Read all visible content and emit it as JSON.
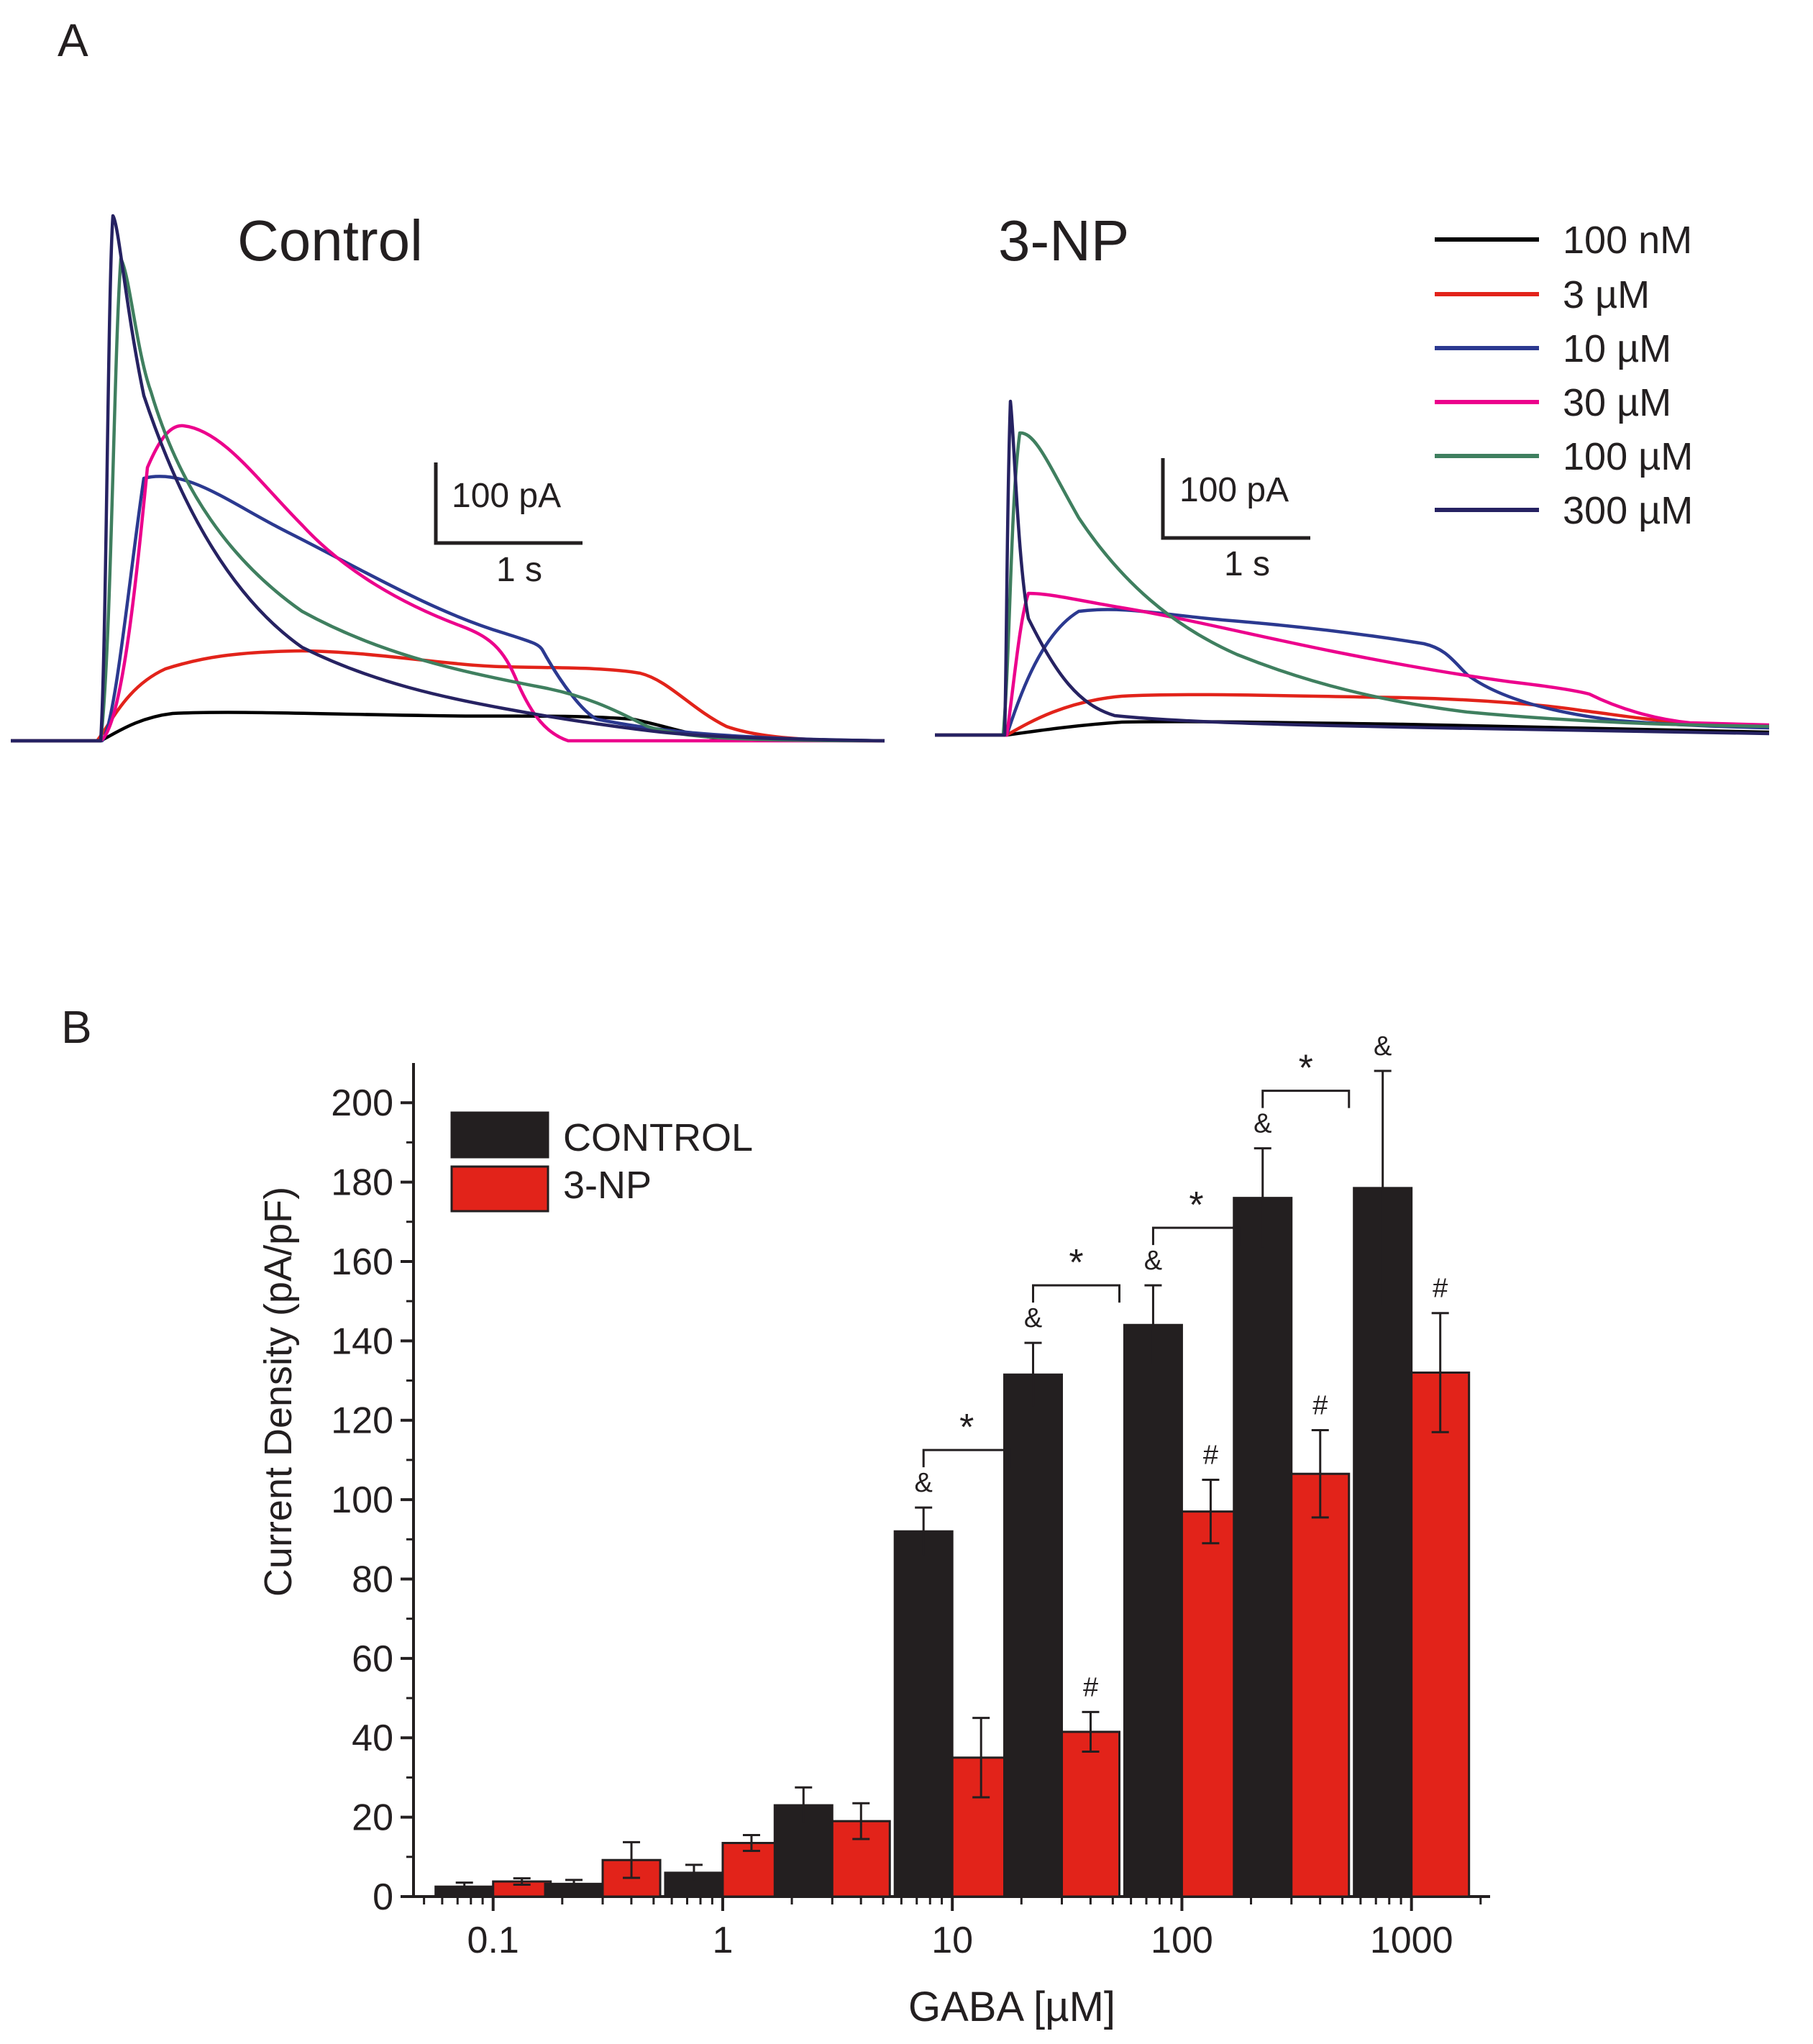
{
  "panel_a": {
    "label": "A",
    "control_title": "Control",
    "np_title": "3-NP",
    "scale_current": "100 pA",
    "scale_time": "1 s",
    "legend": [
      {
        "label": "100 nM",
        "color": "#000000"
      },
      {
        "label": "3 µM",
        "color": "#e2231a"
      },
      {
        "label": "10 µM",
        "color": "#2b3990"
      },
      {
        "label": "30 µM",
        "color": "#ec008c"
      },
      {
        "label": "100 µM",
        "color": "#3f7f5f"
      },
      {
        "label": "300 µM",
        "color": "#262262"
      }
    ]
  },
  "panel_b": {
    "label": "B"
  },
  "chart_data": {
    "type": "bar",
    "xlabel": "GABA [µM]",
    "ylabel": "Current Density (pA/pF)",
    "xscale": "log",
    "xlim": [
      0.045,
      2200
    ],
    "ylim": [
      0,
      210
    ],
    "ytick_values": [
      0,
      20,
      40,
      60,
      80,
      100,
      120,
      140,
      160,
      180,
      200
    ],
    "yticks": [
      "0",
      "20",
      "40",
      "60",
      "80",
      "100",
      "120",
      "140",
      "160",
      "180",
      "200"
    ],
    "xtick_values": [
      0.1,
      1,
      10,
      100,
      1000
    ],
    "xticks": [
      "0.1",
      "1",
      "10",
      "100",
      "1000"
    ],
    "concentrations": [
      0.1,
      0.3,
      1,
      3,
      10,
      30,
      100,
      300,
      1000
    ],
    "legend_position": "top-left",
    "series": [
      {
        "name": "CONTROL",
        "color": "#231f20",
        "values": [
          2.5,
          3.2,
          6,
          23,
          92,
          131.5,
          144,
          176,
          178.5
        ],
        "errors": [
          1,
          1,
          2,
          4.5,
          6,
          8,
          10,
          12.5,
          29.5
        ],
        "marks": [
          "",
          "",
          "",
          "",
          "&",
          "&",
          "&",
          "&",
          "&"
        ]
      },
      {
        "name": "3-NP",
        "color": "#e2231a",
        "values": [
          3.8,
          9.2,
          13.5,
          19,
          35,
          41.5,
          97,
          106.5,
          132
        ],
        "errors": [
          0.8,
          4.5,
          2,
          4.5,
          10,
          5,
          8,
          11,
          15
        ],
        "marks": [
          "",
          "",
          "",
          "",
          "",
          "#",
          "#",
          "#",
          "#"
        ]
      }
    ],
    "significance": [
      {
        "x": 10,
        "label": "*"
      },
      {
        "x": 30,
        "label": "*"
      },
      {
        "x": 100,
        "label": "*"
      },
      {
        "x": 300,
        "label": "*"
      }
    ]
  }
}
